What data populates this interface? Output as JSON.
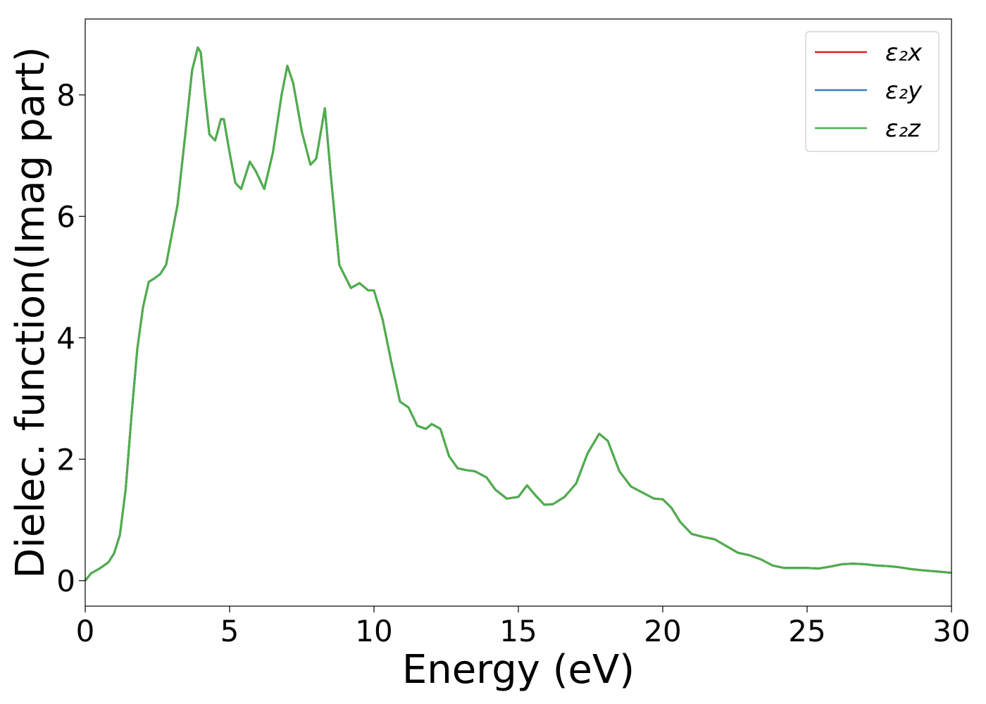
{
  "chart_data": {
    "type": "line",
    "xlabel": "Energy (eV)",
    "ylabel": "Dielec. function(Imag part)",
    "xlim": [
      0,
      30
    ],
    "ylim": [
      -0.42,
      9.25
    ],
    "xticks": [
      0,
      5,
      10,
      15,
      20,
      25,
      30
    ],
    "yticks": [
      0,
      2,
      4,
      6,
      8
    ],
    "grid": false,
    "legend_position": "top-right",
    "series": [
      {
        "name": "ε₂x",
        "color": "#e41a1c"
      },
      {
        "name": "ε₂y",
        "color": "#377eb8"
      },
      {
        "name": "ε₂z",
        "color": "#4daf4a"
      }
    ],
    "x": [
      0,
      0.2,
      0.5,
      0.8,
      1.0,
      1.2,
      1.4,
      1.6,
      1.8,
      2.0,
      2.2,
      2.4,
      2.6,
      2.8,
      3.0,
      3.2,
      3.5,
      3.7,
      3.9,
      4.0,
      4.15,
      4.3,
      4.5,
      4.7,
      4.8,
      5.0,
      5.2,
      5.4,
      5.7,
      5.9,
      6.2,
      6.5,
      6.8,
      7.0,
      7.2,
      7.5,
      7.8,
      8.0,
      8.3,
      8.5,
      8.8,
      9.2,
      9.5,
      9.8,
      10.0,
      10.3,
      10.6,
      10.9,
      11.2,
      11.5,
      11.8,
      12.0,
      12.3,
      12.6,
      12.9,
      13.2,
      13.5,
      13.9,
      14.2,
      14.6,
      15.0,
      15.3,
      15.6,
      15.9,
      16.2,
      16.6,
      17.0,
      17.4,
      17.8,
      18.1,
      18.5,
      18.9,
      19.3,
      19.7,
      20.0,
      20.3,
      20.6,
      21.0,
      21.4,
      21.8,
      22.2,
      22.6,
      23.0,
      23.4,
      23.8,
      24.2,
      24.6,
      25.0,
      25.4,
      25.8,
      26.2,
      26.6,
      27.0,
      27.4,
      27.8,
      28.2,
      28.6,
      29.0,
      29.5,
      30.0
    ],
    "y": [
      0,
      0.12,
      0.2,
      0.3,
      0.45,
      0.75,
      1.5,
      2.7,
      3.8,
      4.5,
      4.92,
      4.98,
      5.05,
      5.2,
      5.7,
      6.2,
      7.5,
      8.4,
      8.78,
      8.7,
      8.0,
      7.35,
      7.25,
      7.6,
      7.6,
      7.05,
      6.55,
      6.45,
      6.9,
      6.75,
      6.45,
      7.05,
      8.0,
      8.48,
      8.2,
      7.4,
      6.85,
      6.95,
      7.78,
      6.7,
      5.2,
      4.82,
      4.9,
      4.78,
      4.78,
      4.3,
      3.6,
      2.95,
      2.85,
      2.55,
      2.5,
      2.58,
      2.5,
      2.05,
      1.85,
      1.82,
      1.8,
      1.7,
      1.5,
      1.35,
      1.38,
      1.57,
      1.4,
      1.25,
      1.26,
      1.38,
      1.6,
      2.1,
      2.42,
      2.3,
      1.8,
      1.55,
      1.45,
      1.35,
      1.34,
      1.2,
      0.97,
      0.77,
      0.72,
      0.68,
      0.57,
      0.46,
      0.42,
      0.35,
      0.25,
      0.21,
      0.21,
      0.21,
      0.2,
      0.23,
      0.27,
      0.28,
      0.27,
      0.25,
      0.24,
      0.22,
      0.19,
      0.17,
      0.15,
      0.13
    ]
  }
}
